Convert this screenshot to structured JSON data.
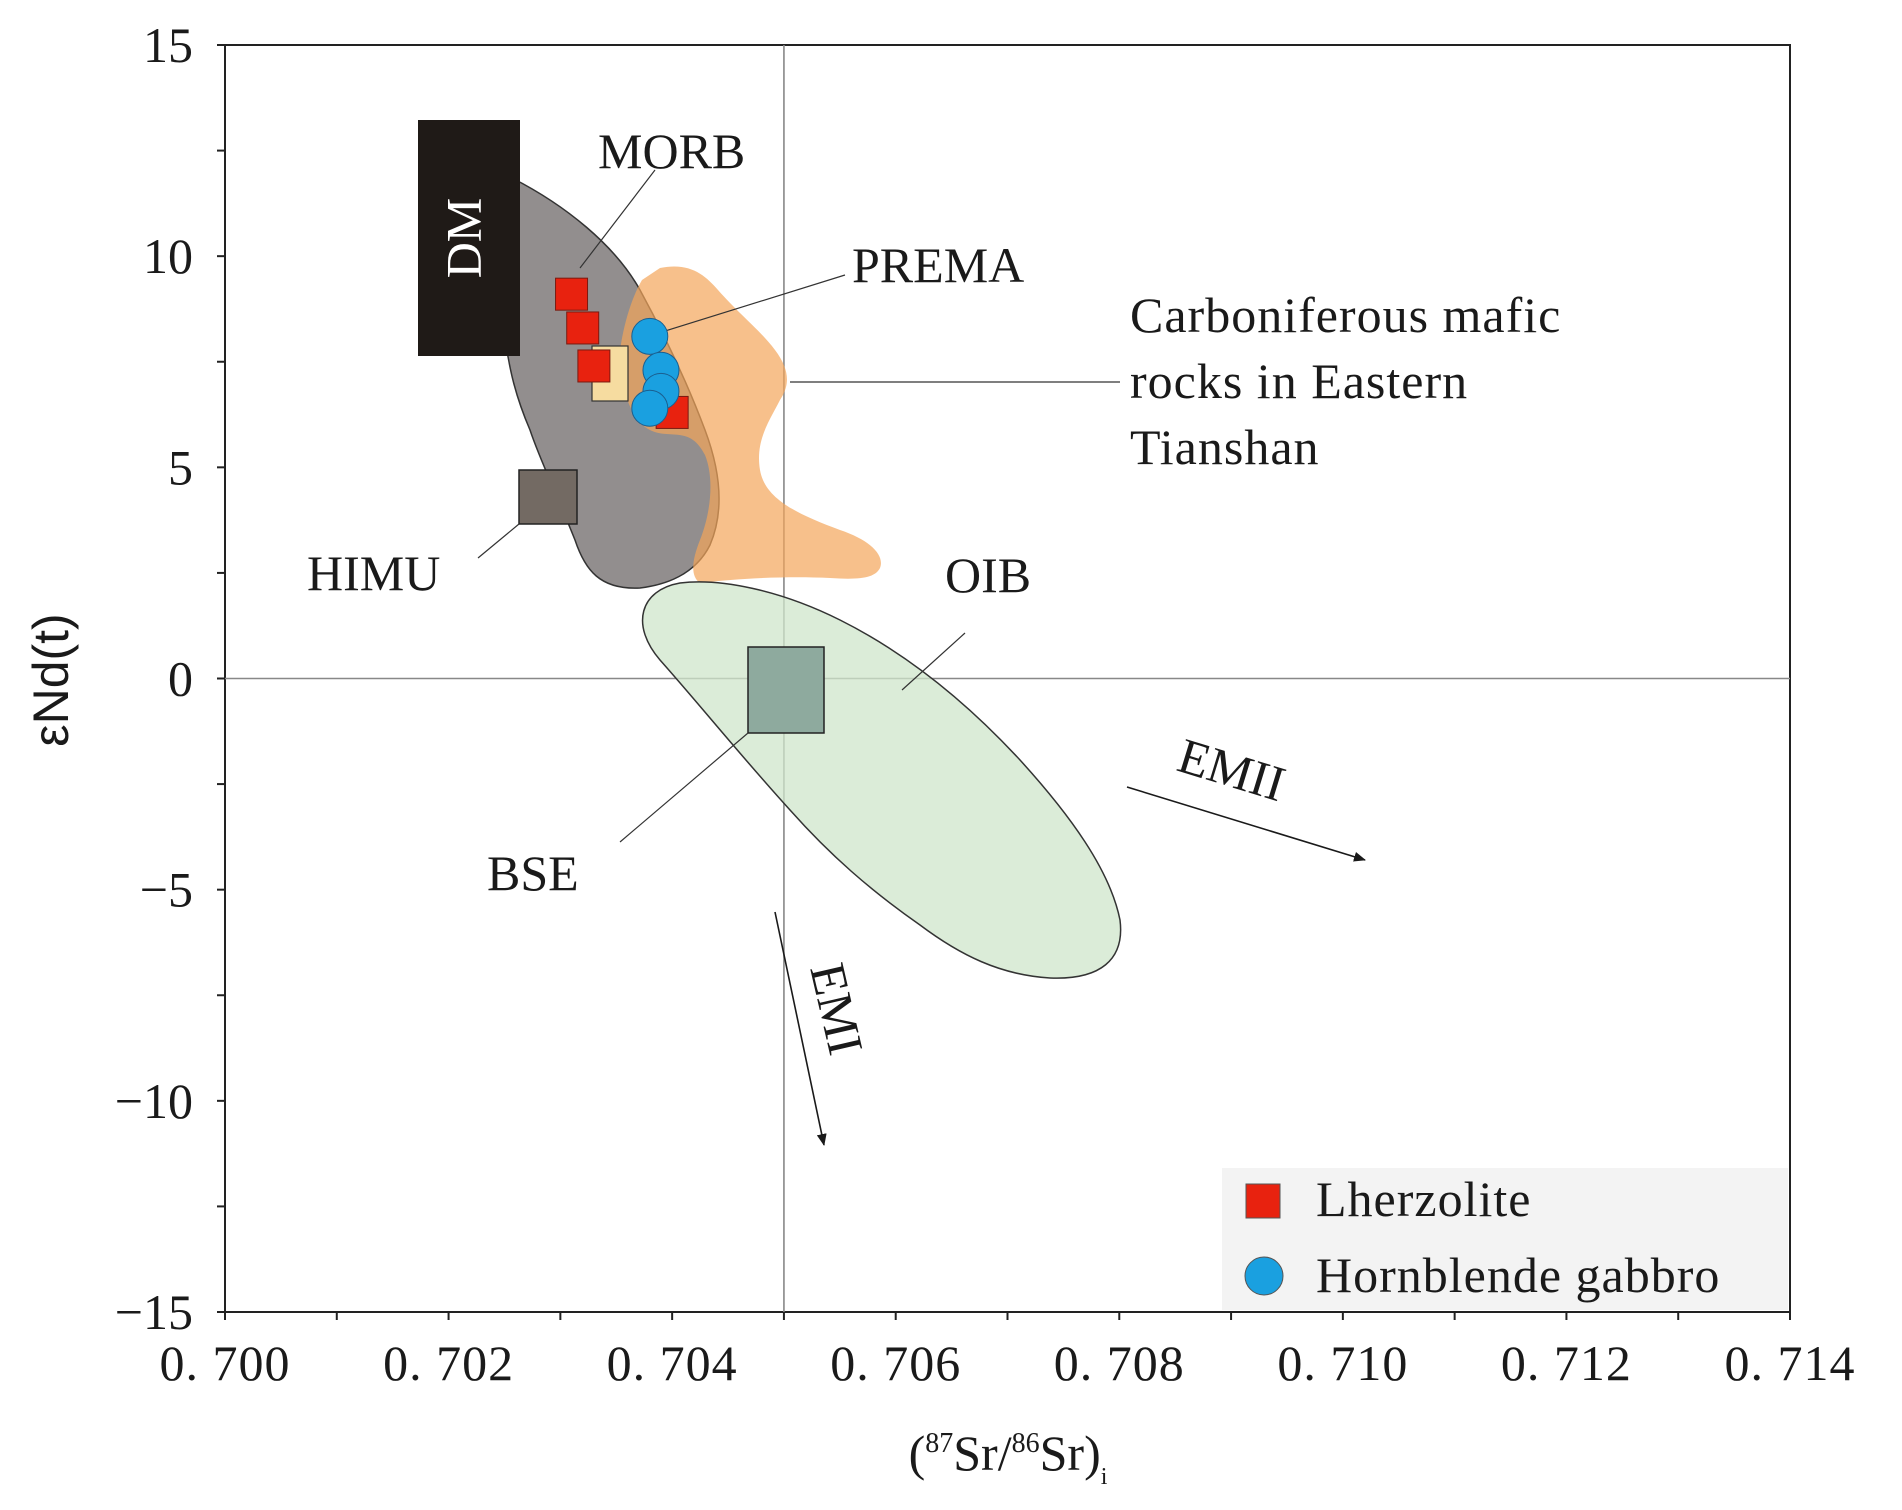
{
  "chart_data": {
    "type": "scatter",
    "title": "",
    "xlabel": {
      "prefix": "(",
      "sup1": "87",
      "mid": "Sr/",
      "sup2": "86",
      "suffix": "Sr)",
      "sub": "i"
    },
    "ylabel": "εNd(t)",
    "xlim": [
      0.7,
      0.714
    ],
    "ylim": [
      -15,
      15
    ],
    "x_ticks": [
      0.7,
      0.702,
      0.704,
      0.706,
      0.708,
      0.71,
      0.712,
      0.714
    ],
    "x_tick_labels": [
      "0. 700",
      "0. 702",
      "0. 704",
      "0. 706",
      "0. 708",
      "0. 710",
      "0. 712",
      "0. 714"
    ],
    "y_ticks": [
      15,
      10,
      5,
      0,
      -5,
      -10,
      -15
    ],
    "y_tick_labels": [
      "15",
      "10",
      "5",
      "0",
      "−5",
      "−10",
      "−15"
    ],
    "reference_lines": {
      "x": 0.705,
      "y": 0
    },
    "grid": false,
    "legend_position": "bottom-right",
    "series": [
      {
        "name": "Lherzolite",
        "marker": "square",
        "color": "#e8220f",
        "points": [
          {
            "x": 0.7031,
            "y": 9.1
          },
          {
            "x": 0.7032,
            "y": 8.3
          },
          {
            "x": 0.7033,
            "y": 7.4
          },
          {
            "x": 0.704,
            "y": 6.3
          }
        ]
      },
      {
        "name": "Hornblende gabbro",
        "marker": "circle",
        "color": "#1aa0e0",
        "points": [
          {
            "x": 0.7038,
            "y": 8.1
          },
          {
            "x": 0.7039,
            "y": 7.3
          },
          {
            "x": 0.7039,
            "y": 6.8
          },
          {
            "x": 0.7038,
            "y": 6.4
          }
        ]
      }
    ],
    "regions": [
      {
        "label": "MORB",
        "color": "#7f7a7a"
      },
      {
        "label": "Carboniferous mafic rocks in Eastern Tianshan",
        "lines": [
          "Carboniferous mafic",
          "rocks  in  Eastern",
          "Tianshan"
        ],
        "color": "#f4a55a"
      },
      {
        "label": "OIB",
        "color": "#cfe5cb"
      },
      {
        "label": "DM",
        "color": "#1f1a17"
      },
      {
        "label": "HIMU",
        "color": "#736a63"
      },
      {
        "label": "BSE",
        "color": "#8eaa9e"
      },
      {
        "label": "PREMA",
        "color": "#f6dca0"
      }
    ],
    "trends": [
      {
        "label": "EMII"
      },
      {
        "label": "EMI"
      }
    ]
  }
}
